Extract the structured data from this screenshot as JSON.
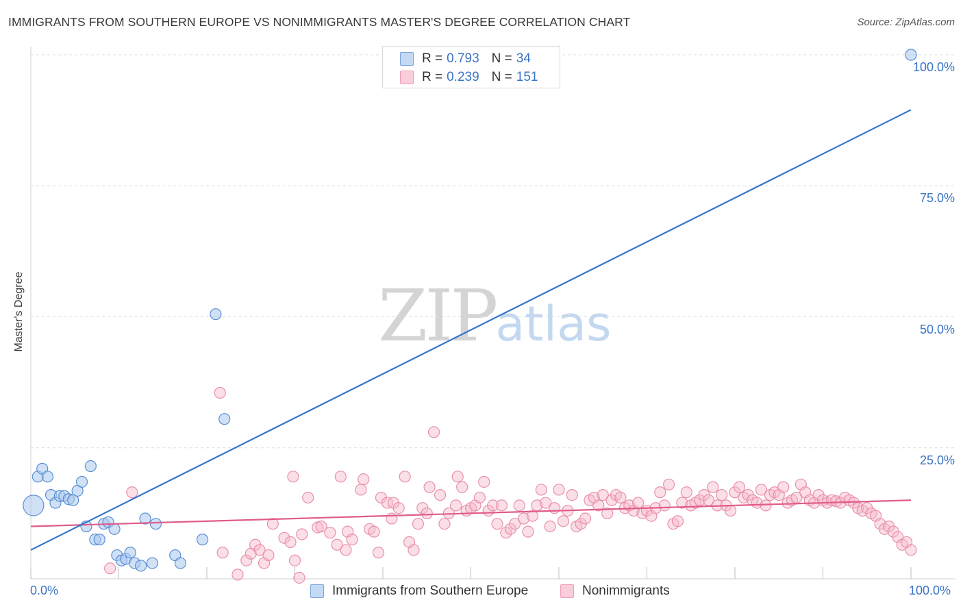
{
  "header": {
    "title": "IMMIGRANTS FROM SOUTHERN EUROPE VS NONIMMIGRANTS MASTER'S DEGREE CORRELATION CHART",
    "source": "Source: ZipAtlas.com"
  },
  "watermark": {
    "zip": "ZIP",
    "atlas": "atlas"
  },
  "legend_top": {
    "rows": [
      {
        "r_label": "R =",
        "r_value": "0.793",
        "n_label": "N =",
        "n_value": "34",
        "color": "#aac8ee"
      },
      {
        "r_label": "R =",
        "r_value": "0.239",
        "n_label": "N =",
        "n_value": "151",
        "color": "#f6b8ca"
      }
    ]
  },
  "legend_bottom": {
    "items": [
      {
        "label": "Immigrants from Southern Europe",
        "color": "#aac8ee"
      },
      {
        "label": "Nonimmigrants",
        "color": "#f6b8ca"
      }
    ]
  },
  "colors": {
    "blue_fill": "#aac8ee",
    "blue_stroke": "#5b8fd4",
    "blue_line": "#3575cc",
    "pink_fill": "#f6b8ca",
    "pink_stroke": "#e890aa",
    "pink_line": "#e05c8a",
    "tick_text": "#3b74c5",
    "grid": "#dcdcdc"
  },
  "chart_data": {
    "type": "scatter",
    "title": "IMMIGRANTS FROM SOUTHERN EUROPE VS NONIMMIGRANTS MASTER'S DEGREE CORRELATION CHART",
    "xlabel": "",
    "ylabel": "Master's Degree",
    "xlim": [
      0,
      100
    ],
    "ylim": [
      0,
      100
    ],
    "x_tick_labels": [
      "0.0%",
      "100.0%"
    ],
    "y_ticks": [
      25,
      50,
      75,
      100
    ],
    "y_tick_labels": [
      "25.0%",
      "50.0%",
      "75.0%",
      "100.0%"
    ],
    "grid": true,
    "legend_position": "bottom",
    "series": [
      {
        "name": "Immigrants from Southern Europe",
        "R": 0.793,
        "N": 34,
        "trend": {
          "x": [
            0,
            100
          ],
          "y": [
            5.5,
            89.5
          ]
        },
        "points": [
          [
            0.3,
            14.0
          ],
          [
            0.8,
            19.5
          ],
          [
            1.3,
            21.0
          ],
          [
            1.9,
            19.5
          ],
          [
            2.3,
            16.0
          ],
          [
            2.8,
            14.5
          ],
          [
            3.3,
            15.8
          ],
          [
            3.8,
            15.8
          ],
          [
            4.3,
            15.2
          ],
          [
            4.8,
            15.0
          ],
          [
            5.3,
            16.8
          ],
          [
            5.8,
            18.5
          ],
          [
            6.3,
            10.0
          ],
          [
            6.8,
            21.5
          ],
          [
            7.3,
            7.5
          ],
          [
            7.8,
            7.5
          ],
          [
            8.3,
            10.5
          ],
          [
            8.8,
            10.8
          ],
          [
            9.5,
            9.5
          ],
          [
            9.8,
            4.5
          ],
          [
            10.3,
            3.5
          ],
          [
            10.8,
            3.8
          ],
          [
            11.3,
            5.0
          ],
          [
            11.8,
            3.0
          ],
          [
            12.5,
            2.5
          ],
          [
            13.0,
            11.5
          ],
          [
            13.8,
            3.0
          ],
          [
            14.2,
            10.5
          ],
          [
            16.4,
            4.5
          ],
          [
            17.0,
            3.0
          ],
          [
            19.5,
            7.5
          ],
          [
            21.0,
            50.5
          ],
          [
            22.0,
            30.5
          ],
          [
            100.0,
            100.0
          ]
        ]
      },
      {
        "name": "Nonimmigrants",
        "R": 0.239,
        "N": 151,
        "trend": {
          "x": [
            0,
            100
          ],
          "y": [
            10.0,
            15.0
          ]
        },
        "points": [
          [
            9.0,
            2.0
          ],
          [
            11.5,
            16.5
          ],
          [
            21.5,
            35.5
          ],
          [
            21.8,
            5.0
          ],
          [
            23.5,
            0.8
          ],
          [
            24.5,
            3.5
          ],
          [
            25.0,
            4.8
          ],
          [
            25.5,
            6.5
          ],
          [
            26.0,
            5.5
          ],
          [
            26.5,
            3.0
          ],
          [
            27.0,
            4.5
          ],
          [
            27.5,
            10.5
          ],
          [
            28.8,
            7.8
          ],
          [
            29.5,
            7.0
          ],
          [
            29.8,
            19.5
          ],
          [
            30.5,
            0.2
          ],
          [
            30.8,
            8.5
          ],
          [
            31.5,
            15.5
          ],
          [
            32.6,
            9.8
          ],
          [
            33.0,
            10.0
          ],
          [
            34.0,
            8.8
          ],
          [
            34.8,
            6.5
          ],
          [
            35.2,
            19.5
          ],
          [
            35.8,
            5.5
          ],
          [
            36.0,
            9.0
          ],
          [
            36.5,
            7.5
          ],
          [
            37.5,
            17.0
          ],
          [
            37.8,
            19.0
          ],
          [
            38.5,
            9.5
          ],
          [
            39.0,
            9.0
          ],
          [
            39.5,
            5.0
          ],
          [
            39.8,
            15.5
          ],
          [
            40.5,
            14.5
          ],
          [
            41.0,
            11.5
          ],
          [
            41.2,
            14.5
          ],
          [
            41.8,
            13.5
          ],
          [
            42.5,
            19.5
          ],
          [
            43.0,
            7.0
          ],
          [
            43.5,
            5.5
          ],
          [
            44.0,
            10.5
          ],
          [
            44.5,
            13.5
          ],
          [
            45.0,
            12.5
          ],
          [
            45.3,
            17.5
          ],
          [
            45.8,
            28.0
          ],
          [
            46.5,
            16.0
          ],
          [
            47.0,
            10.5
          ],
          [
            47.5,
            12.5
          ],
          [
            48.3,
            14.0
          ],
          [
            48.5,
            19.5
          ],
          [
            49.0,
            17.5
          ],
          [
            49.5,
            13.0
          ],
          [
            50.0,
            13.5
          ],
          [
            50.5,
            14.0
          ],
          [
            51.0,
            15.5
          ],
          [
            51.5,
            18.5
          ],
          [
            52.0,
            13.0
          ],
          [
            52.5,
            14.0
          ],
          [
            53.0,
            10.5
          ],
          [
            53.5,
            14.0
          ],
          [
            54.0,
            8.8
          ],
          [
            54.5,
            9.5
          ],
          [
            55.0,
            10.5
          ],
          [
            55.5,
            14.0
          ],
          [
            56.0,
            11.5
          ],
          [
            56.5,
            9.0
          ],
          [
            57.0,
            12.0
          ],
          [
            57.5,
            14.0
          ],
          [
            58.0,
            17.0
          ],
          [
            58.5,
            14.5
          ],
          [
            59.0,
            10.0
          ],
          [
            59.5,
            13.5
          ],
          [
            60.0,
            17.0
          ],
          [
            60.5,
            11.0
          ],
          [
            61.0,
            13.0
          ],
          [
            61.5,
            16.0
          ],
          [
            62.0,
            10.0
          ],
          [
            62.5,
            10.5
          ],
          [
            63.0,
            11.5
          ],
          [
            63.5,
            15.0
          ],
          [
            64.0,
            15.5
          ],
          [
            64.5,
            14.0
          ],
          [
            65.0,
            16.0
          ],
          [
            65.5,
            12.5
          ],
          [
            66.0,
            15.0
          ],
          [
            66.5,
            16.0
          ],
          [
            67.0,
            15.5
          ],
          [
            67.5,
            13.5
          ],
          [
            68.0,
            14.0
          ],
          [
            68.5,
            13.0
          ],
          [
            69.0,
            14.5
          ],
          [
            69.5,
            12.5
          ],
          [
            70.0,
            13.0
          ],
          [
            70.5,
            12.0
          ],
          [
            71.0,
            13.5
          ],
          [
            71.5,
            16.5
          ],
          [
            72.0,
            14.0
          ],
          [
            72.5,
            18.0
          ],
          [
            73.0,
            10.5
          ],
          [
            73.5,
            11.0
          ],
          [
            74.0,
            14.5
          ],
          [
            74.5,
            16.5
          ],
          [
            75.0,
            14.0
          ],
          [
            75.5,
            14.5
          ],
          [
            76.0,
            15.0
          ],
          [
            76.5,
            16.0
          ],
          [
            77.0,
            15.0
          ],
          [
            77.5,
            17.5
          ],
          [
            78.0,
            14.0
          ],
          [
            78.5,
            16.0
          ],
          [
            79.0,
            14.0
          ],
          [
            79.5,
            13.0
          ],
          [
            80.0,
            16.5
          ],
          [
            80.5,
            17.5
          ],
          [
            81.0,
            15.5
          ],
          [
            81.5,
            16.0
          ],
          [
            82.0,
            15.0
          ],
          [
            82.5,
            14.5
          ],
          [
            83.0,
            17.0
          ],
          [
            83.5,
            14.0
          ],
          [
            84.0,
            16.0
          ],
          [
            84.5,
            16.5
          ],
          [
            85.0,
            16.0
          ],
          [
            85.5,
            17.5
          ],
          [
            86.0,
            14.5
          ],
          [
            86.5,
            15.0
          ],
          [
            87.0,
            15.5
          ],
          [
            87.5,
            18.0
          ],
          [
            88.0,
            16.5
          ],
          [
            88.5,
            15.0
          ],
          [
            89.0,
            14.5
          ],
          [
            89.5,
            16.0
          ],
          [
            90.0,
            15.0
          ],
          [
            90.5,
            14.5
          ],
          [
            91.0,
            15.0
          ],
          [
            91.5,
            14.8
          ],
          [
            92.0,
            14.5
          ],
          [
            92.5,
            15.5
          ],
          [
            93.0,
            15.0
          ],
          [
            93.5,
            14.5
          ],
          [
            94.0,
            13.5
          ],
          [
            94.5,
            13.0
          ],
          [
            95.0,
            13.5
          ],
          [
            95.5,
            12.5
          ],
          [
            96.0,
            12.0
          ],
          [
            96.5,
            10.5
          ],
          [
            97.0,
            9.5
          ],
          [
            97.5,
            10.0
          ],
          [
            98.0,
            9.0
          ],
          [
            98.5,
            8.0
          ],
          [
            99.0,
            6.5
          ],
          [
            99.5,
            7.0
          ],
          [
            100.0,
            5.5
          ],
          [
            30.0,
            3.5
          ]
        ]
      }
    ]
  }
}
